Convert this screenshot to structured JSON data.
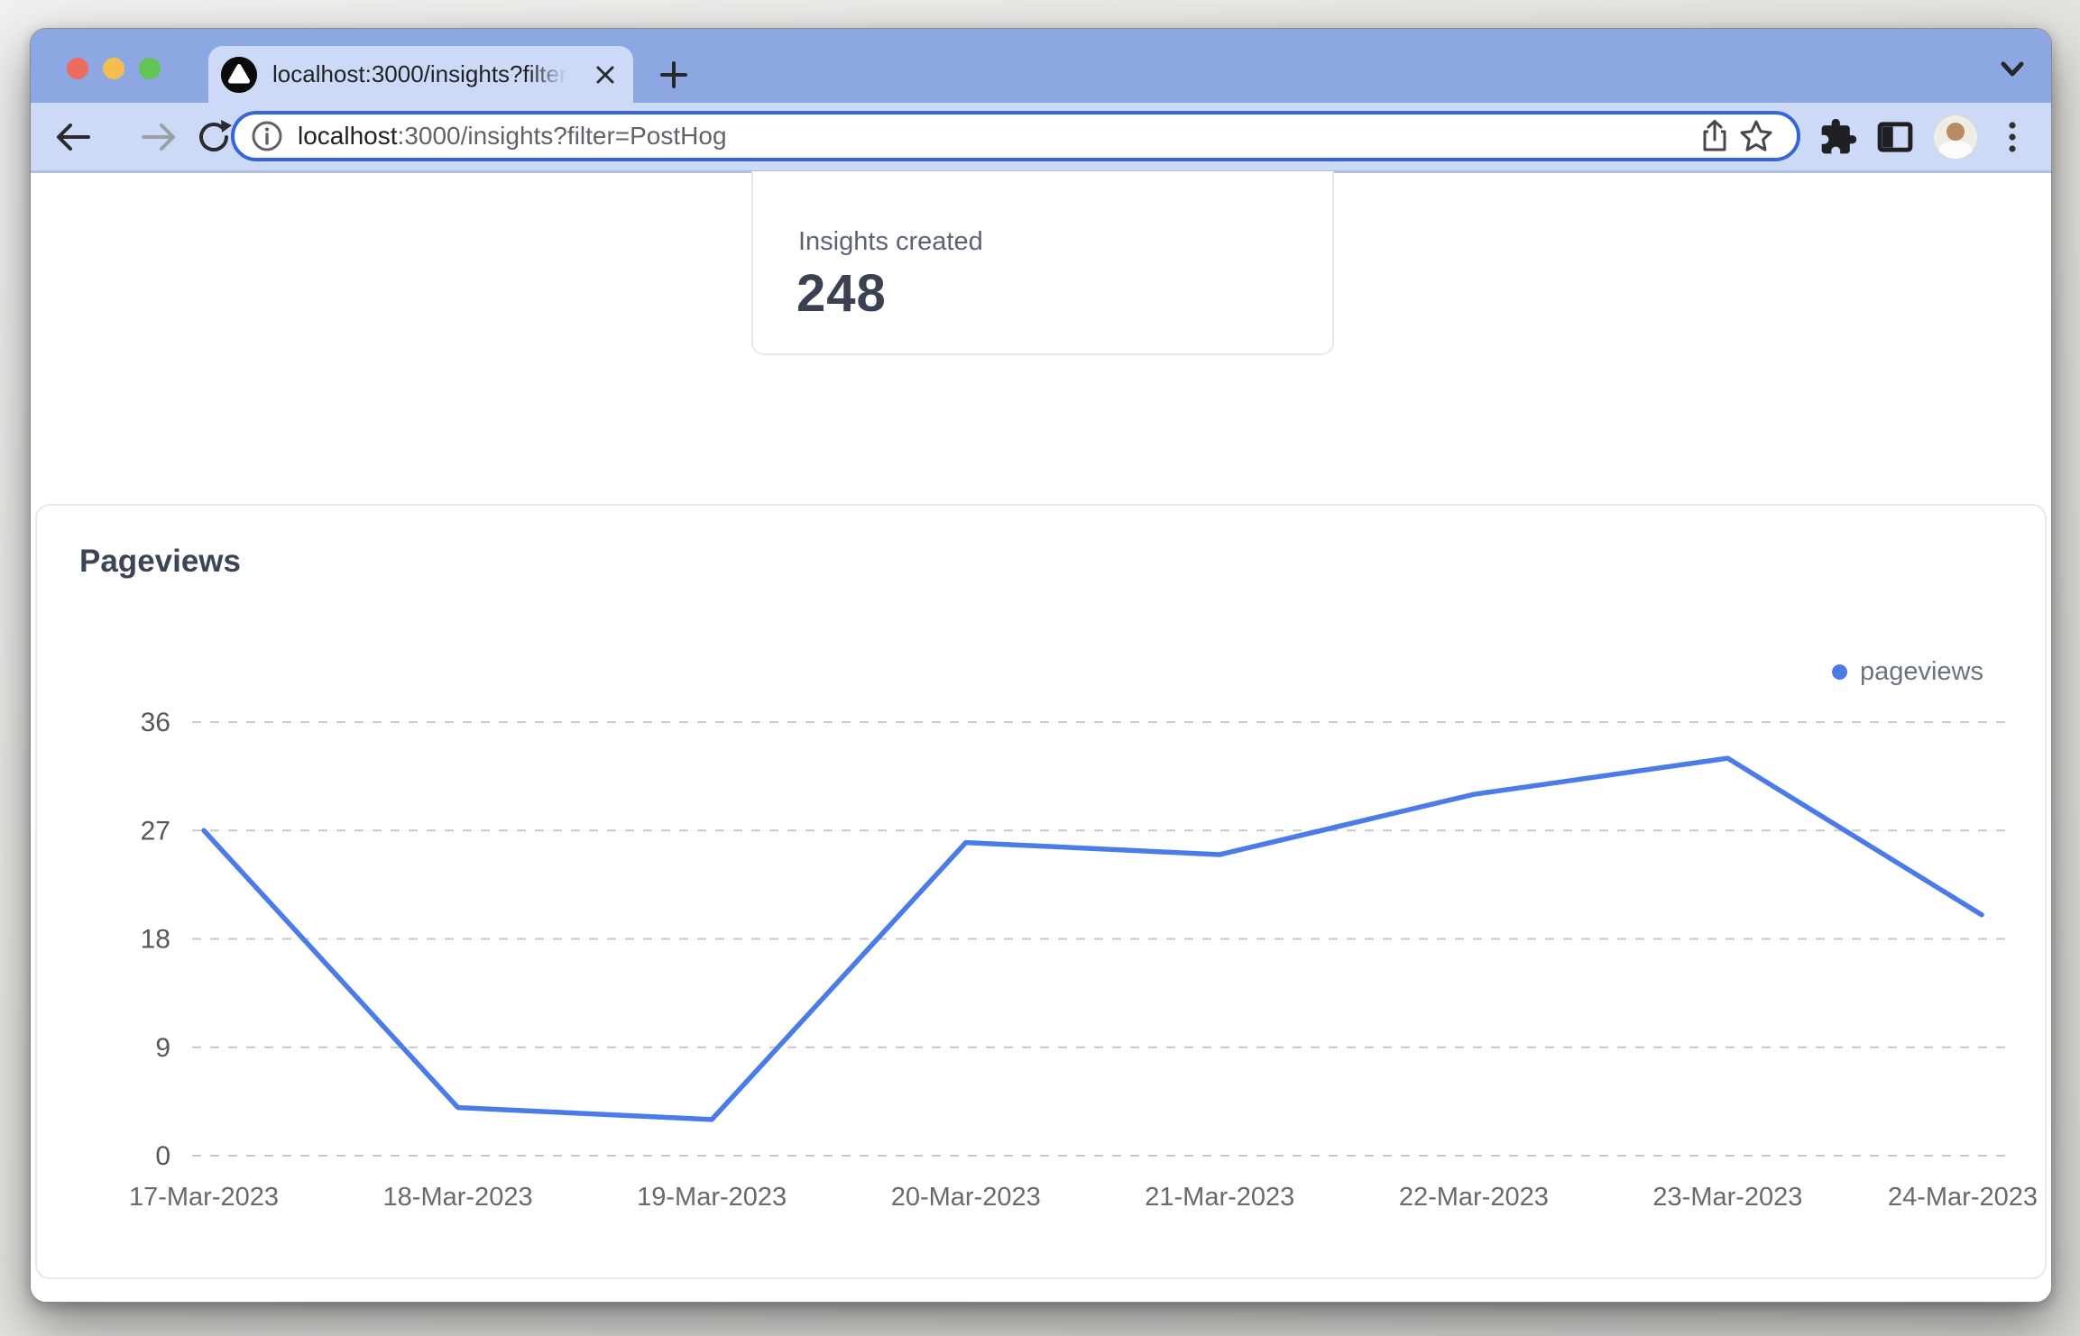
{
  "window": {
    "traffic_lights": [
      "close",
      "minimize",
      "zoom"
    ]
  },
  "browser": {
    "tab_title": "localhost:3000/insights?filter=",
    "new_tab_label": "+",
    "url_host": "localhost",
    "url_rest": ":3000/insights?filter=PostHog"
  },
  "page": {
    "insights_card": {
      "label": "Insights created",
      "value": "248"
    }
  },
  "chart_data": {
    "type": "line",
    "title": "Pageviews",
    "categories": [
      "17-Mar-2023",
      "18-Mar-2023",
      "19-Mar-2023",
      "20-Mar-2023",
      "21-Mar-2023",
      "22-Mar-2023",
      "23-Mar-2023",
      "24-Mar-2023"
    ],
    "series": [
      {
        "name": "pageviews",
        "color": "#4b7be8",
        "values": [
          27,
          4,
          3,
          26,
          25,
          30,
          33,
          20
        ]
      }
    ],
    "xlabel": "",
    "ylabel": "",
    "y_ticks": [
      0,
      9,
      18,
      27,
      36
    ],
    "ylim": [
      0,
      36
    ],
    "grid": "horizontal-dashed",
    "legend_position": "top-right"
  },
  "colors": {
    "tab_strip": "#8ca7e2",
    "toolbar": "#ccdaf7",
    "url_focus_border": "#3565dd",
    "line": "#4b7be8",
    "traffic_red": "#ec6a5e",
    "traffic_yellow": "#f4bf50",
    "traffic_green": "#61c454"
  }
}
